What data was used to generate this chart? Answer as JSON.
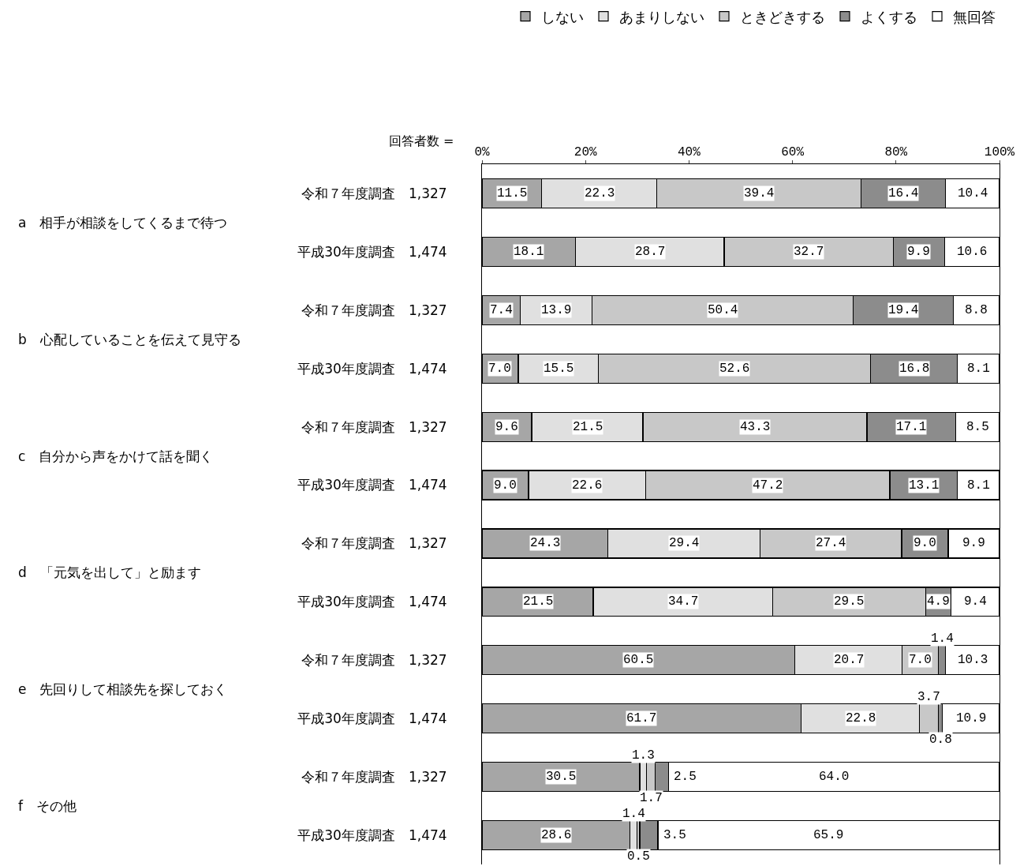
{
  "chart_data": {
    "type": "bar",
    "orientation": "horizontal",
    "stacked": true,
    "legend": "top right",
    "grid": false,
    "categories": [
      "令和７年度調査　1,327",
      "平成30年度調査　1,474",
      "令和７年度調査　1,327",
      "平成30年度調査　1,474",
      "令和７年度調査　1,327",
      "平成30年度調査　1,474",
      "令和７年度調査　1,327",
      "平成30年度調査　1,474",
      "令和７年度調査　1,327",
      "平成30年度調査　1,474",
      "令和７年度調査　1,327",
      "平成30年度調査　1,474"
    ],
    "xlim": [
      0,
      100
    ],
    "xticks": [
      {
        "value": 0,
        "label": "0%"
      },
      {
        "value": 20,
        "label": "20%"
      },
      {
        "value": 40,
        "label": "40%"
      },
      {
        "value": 60,
        "label": "60%"
      },
      {
        "value": 80,
        "label": "80%"
      },
      {
        "value": 100,
        "label": "100%"
      }
    ],
    "annotations": [
      "回答者数 =",
      "a　相手が相談をしてくるまで待つ",
      "b　心配していることを伝えて見守る",
      "c　自分から声をかけて話を聞く",
      "d　「元気を出して」と励ます",
      "e　先回りして相談先を探しておく",
      "f　その他"
    ],
    "series": [
      {
        "name": "しない",
        "color": "#a6a6a6",
        "values": [
          11.5,
          18.1,
          7.4,
          7.0,
          9.6,
          9.0,
          24.3,
          21.5,
          60.5,
          61.7,
          30.5,
          28.6
        ],
        "value_labels": [
          "11.5",
          "18.1",
          "7.4",
          "7.0",
          "9.6",
          "9.0",
          "24.3",
          "21.5",
          "60.5",
          "61.7",
          "30.5",
          "28.6"
        ]
      },
      {
        "name": "あまりしない",
        "color": "#e0e0e0",
        "values": [
          22.3,
          28.7,
          13.9,
          15.5,
          21.5,
          22.6,
          29.4,
          34.7,
          20.7,
          22.8,
          1.3,
          1.4
        ],
        "value_labels": [
          "22.3",
          "28.7",
          "13.9",
          "15.5",
          "21.5",
          "22.6",
          "29.4",
          "34.7",
          "20.7",
          "22.8",
          "1.3",
          "1.4"
        ]
      },
      {
        "name": "ときどきする",
        "color": "#c8c8c8",
        "values": [
          39.4,
          32.7,
          50.4,
          52.6,
          43.3,
          47.2,
          27.4,
          29.5,
          7.0,
          3.7,
          1.7,
          0.5
        ],
        "value_labels": [
          "39.4",
          "32.7",
          "50.4",
          "52.6",
          "43.3",
          "47.2",
          "27.4",
          "29.5",
          "7.0",
          "3.7",
          "1.7",
          "0.5"
        ]
      },
      {
        "name": "よくする",
        "color": "#8c8c8c",
        "values": [
          16.4,
          9.9,
          19.4,
          16.8,
          17.1,
          13.1,
          9.0,
          4.9,
          1.4,
          0.8,
          2.5,
          3.5
        ],
        "value_labels": [
          "16.4",
          "9.9",
          "19.4",
          "16.8",
          "17.1",
          "13.1",
          "9.0",
          "4.9",
          "1.4",
          "0.8",
          "2.5",
          "3.5"
        ]
      },
      {
        "name": "無回答",
        "color": "#ffffff",
        "values": [
          10.4,
          10.6,
          8.8,
          8.1,
          8.5,
          8.1,
          9.9,
          9.4,
          10.3,
          10.9,
          64.0,
          65.9
        ],
        "value_labels": [
          "10.4",
          "10.6",
          "8.8",
          "8.1",
          "8.5",
          "8.1",
          "9.9",
          "9.4",
          "10.3",
          "10.9",
          "64.0",
          "65.9"
        ]
      }
    ]
  }
}
